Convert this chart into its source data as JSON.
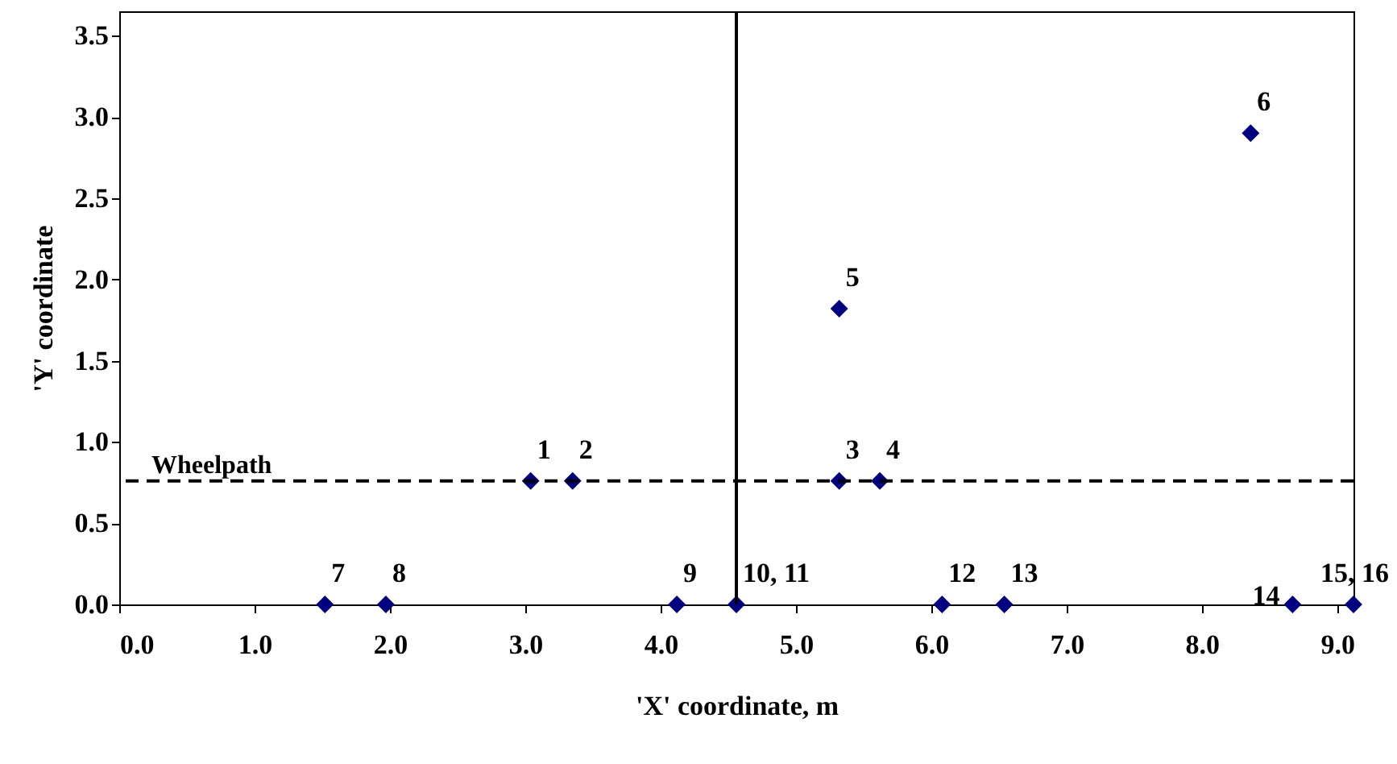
{
  "chart_data": {
    "type": "scatter",
    "xlabel": "'X' coordinate, m",
    "ylabel": "'Y' coordinate",
    "x": [
      3.04,
      3.35,
      5.32,
      5.62,
      5.32,
      8.36,
      1.52,
      1.97,
      4.12,
      4.56,
      6.08,
      6.54,
      8.67,
      9.12
    ],
    "series": [
      {
        "color": "#000080",
        "values": [
          0.76,
          0.76,
          0.76,
          0.76,
          1.82,
          2.9,
          0,
          0,
          0,
          0,
          0,
          0,
          0,
          0
        ]
      }
    ],
    "value_labels": [
      "1",
      "2",
      "3",
      "4",
      "5",
      "6",
      "7",
      "8",
      "9",
      "10, 11",
      "12",
      "13",
      "14",
      "15, 16"
    ],
    "xlim": [
      0,
      9.12
    ],
    "ylim": [
      0,
      3.65
    ],
    "xticks": [
      {
        "value": 0,
        "label": "0.0"
      },
      {
        "value": 1,
        "label": "1.0"
      },
      {
        "value": 2,
        "label": "2.0"
      },
      {
        "value": 3,
        "label": "3.0"
      },
      {
        "value": 4,
        "label": "4.0"
      },
      {
        "value": 5,
        "label": "5.0"
      },
      {
        "value": 6,
        "label": "6.0"
      },
      {
        "value": 7,
        "label": "7.0"
      },
      {
        "value": 8,
        "label": "8.0"
      },
      {
        "value": 9,
        "label": "9.0"
      }
    ],
    "yticks": [
      {
        "value": 0,
        "label": "0.0"
      },
      {
        "value": 0.5,
        "label": "0.5"
      },
      {
        "value": 1,
        "label": "1.0"
      },
      {
        "value": 1.5,
        "label": "1.5"
      },
      {
        "value": 2,
        "label": "2.0"
      },
      {
        "value": 2.5,
        "label": "2.5"
      },
      {
        "value": 3,
        "label": "3.0"
      },
      {
        "value": 3.5,
        "label": "3.5"
      }
    ],
    "ref_lines": [
      {
        "axis": "y",
        "value": 0.76,
        "label": "Wheelpath",
        "color": "#000000",
        "line_style": "dashed"
      },
      {
        "axis": "x",
        "value": 4.56,
        "color": "#000000",
        "line_style": "solid"
      }
    ],
    "marker": "diamond",
    "grid": false
  }
}
